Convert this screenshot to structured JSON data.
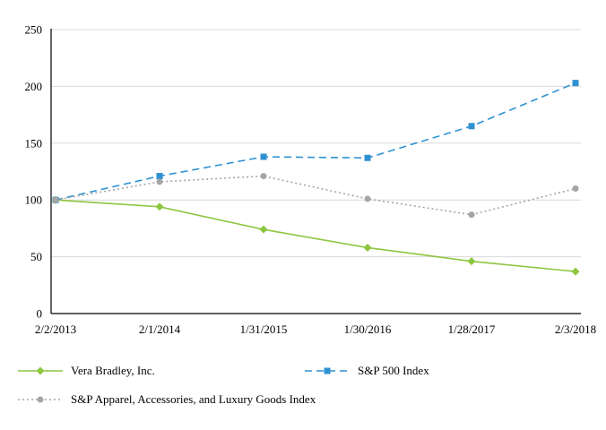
{
  "chart_data": {
    "type": "line",
    "title": "",
    "xlabel": "",
    "ylabel": "",
    "categories": [
      "2/2/2013",
      "2/1/2014",
      "1/31/2015",
      "1/30/2016",
      "1/28/2017",
      "2/3/2018"
    ],
    "series": [
      {
        "name": "Vera Bradley, Inc.",
        "values": [
          100,
          94,
          74,
          58,
          46,
          37
        ],
        "color": "#8DC63F",
        "marker": "diamond",
        "dash": "solid"
      },
      {
        "name": "S&P 500 Index",
        "values": [
          100,
          121,
          138,
          137,
          165,
          203
        ],
        "color": "#2E91D2",
        "marker": "square",
        "dash": "dashed"
      },
      {
        "name": "S&P Apparel, Accessories, and Luxury Goods Index",
        "values": [
          100,
          116,
          121,
          101,
          87,
          110
        ],
        "color": "#A5A5A5",
        "marker": "circle",
        "dash": "dotted"
      }
    ],
    "ylim": [
      0,
      250
    ],
    "yticks": [
      0,
      50,
      100,
      150,
      200,
      250
    ],
    "grid": true,
    "grid_color": "#D9D9D9",
    "axis_color": "#000000",
    "legend_position": "bottom",
    "legend_rows": [
      [
        0,
        1
      ],
      [
        2
      ]
    ]
  }
}
